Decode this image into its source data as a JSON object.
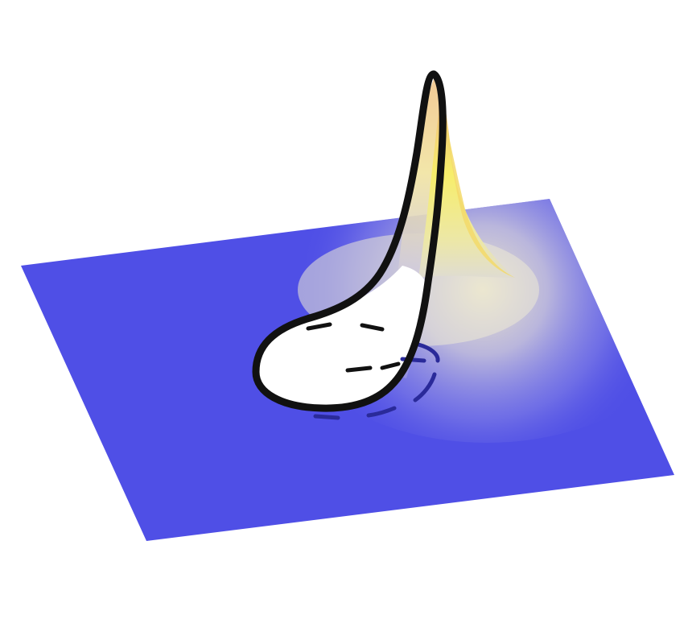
{
  "figure": {
    "colors": {
      "background": "#ffffff",
      "plane": "#4f4fe6",
      "plane_edge": "#4a4ad8",
      "peak_top": "#e9a07a",
      "peak_mid": "#f6ec6a",
      "peak_low": "#e6e3a0",
      "hole_fill": "#ffffff",
      "curve": "#111111",
      "dashed_curve": "#2a2a9a"
    },
    "icon": "3d-surface-peak-with-loop"
  }
}
